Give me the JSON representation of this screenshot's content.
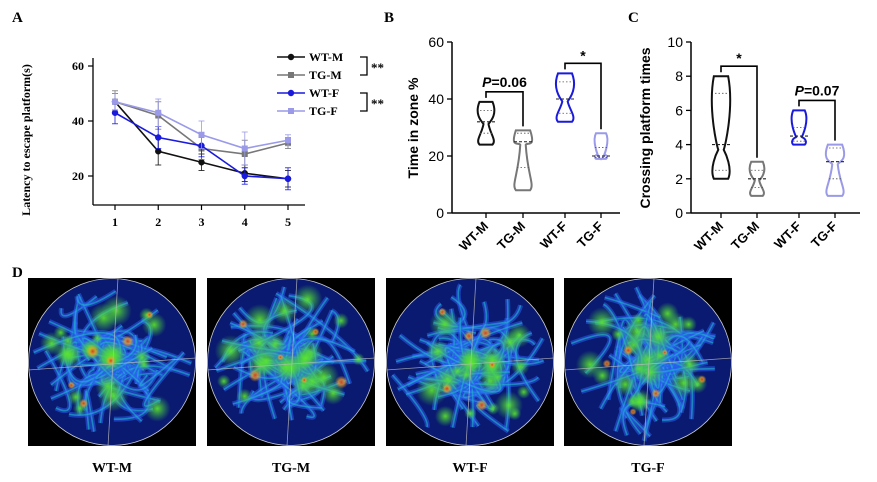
{
  "figure": {
    "panel_letters": [
      "A",
      "B",
      "C",
      "D"
    ],
    "heatmap_labels": [
      "WT-M",
      "TG-M",
      "WT-F",
      "TG-F"
    ]
  },
  "colors": {
    "wt_m": "#111111",
    "tg_m": "#777777",
    "wt_f": "#1a1adc",
    "tg_f": "#9a9ae8"
  },
  "chart_data": [
    {
      "type": "line",
      "panel": "A",
      "ylabel": "Latency to escape platform(s)",
      "xlabel": "",
      "x": [
        1,
        2,
        3,
        4,
        5
      ],
      "xticks": [
        "1",
        "2",
        "3",
        "4",
        "5"
      ],
      "yticks": [
        "20",
        "40",
        "60"
      ],
      "ylim": [
        10,
        62
      ],
      "series": [
        {
          "name": "WT-M",
          "values": [
            47,
            29,
            25,
            21,
            19
          ],
          "errors": [
            3,
            5,
            3,
            3,
            3
          ]
        },
        {
          "name": "TG-M",
          "values": [
            47,
            42,
            30,
            28,
            32
          ],
          "errors": [
            4,
            5,
            4,
            5,
            2
          ]
        },
        {
          "name": "WT-F",
          "values": [
            43,
            34,
            31,
            20,
            19
          ],
          "errors": [
            4,
            4,
            4,
            3,
            4
          ]
        },
        {
          "name": "TG-F",
          "values": [
            47,
            43,
            35,
            30,
            33
          ],
          "errors": [
            3,
            5,
            5,
            6,
            2
          ]
        }
      ],
      "legend": [
        "WT-M",
        "TG-M",
        "WT-F",
        "TG-F"
      ],
      "significance": [
        "**",
        "**"
      ]
    },
    {
      "type": "violin",
      "panel": "B",
      "ylabel": "Time in zone %",
      "categories": [
        "WT-M",
        "TG-M",
        "WT-F",
        "TG-F"
      ],
      "yticks": [
        "0",
        "20",
        "40",
        "60"
      ],
      "ylim": [
        0,
        60
      ],
      "stats": [
        {
          "min": 24,
          "max": 39,
          "median": 32,
          "q1": 28,
          "q3": 36
        },
        {
          "min": 8,
          "max": 29,
          "median": 25,
          "q1": 16,
          "q3": 28
        },
        {
          "min": 32,
          "max": 49,
          "median": 40,
          "q1": 35,
          "q3": 46
        },
        {
          "min": 19,
          "max": 28,
          "median": 20,
          "q1": 19.5,
          "q3": 23
        }
      ],
      "annotations": [
        {
          "between": [
            "WT-M",
            "TG-M"
          ],
          "text": "P=0.06",
          "p_letter": "P",
          "p_rest": "=0.06"
        },
        {
          "between": [
            "WT-F",
            "TG-F"
          ],
          "text": "*"
        }
      ]
    },
    {
      "type": "violin",
      "panel": "C",
      "ylabel": "Crossing platform times",
      "categories": [
        "WT-M",
        "TG-M",
        "WT-F",
        "TG-F"
      ],
      "yticks": [
        "0",
        "2",
        "4",
        "6",
        "8",
        "10"
      ],
      "ylim": [
        0,
        10
      ],
      "stats": [
        {
          "min": 2,
          "max": 8,
          "median": 4,
          "q1": 2.5,
          "q3": 7
        },
        {
          "min": 1,
          "max": 3,
          "median": 2,
          "q1": 1.5,
          "q3": 2.5
        },
        {
          "min": 4,
          "max": 6,
          "median": 4.5,
          "q1": 4.2,
          "q3": 5
        },
        {
          "min": 1,
          "max": 4,
          "median": 3,
          "q1": 2,
          "q3": 3.8
        }
      ],
      "annotations": [
        {
          "between": [
            "WT-M",
            "TG-M"
          ],
          "text": "*"
        },
        {
          "between": [
            "WT-F",
            "TG-F"
          ],
          "text": "P=0.07",
          "p_letter": "P",
          "p_rest": "=0.07"
        }
      ]
    }
  ]
}
